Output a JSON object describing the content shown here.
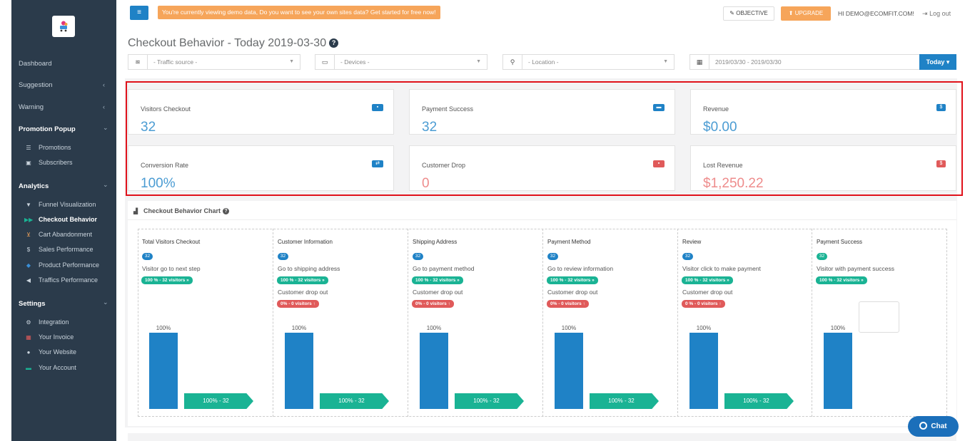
{
  "sidebar": {
    "nav": [
      {
        "label": "Dashboard",
        "chevron": ""
      },
      {
        "label": "Suggestion",
        "chevron": "‹"
      },
      {
        "label": "Warning",
        "chevron": "‹"
      },
      {
        "label": "Promotion Popup",
        "chevron": "⌄"
      },
      {
        "label": "Analytics",
        "chevron": "⌄"
      },
      {
        "label": "Settings",
        "chevron": "⌄"
      }
    ],
    "promotion_sub": [
      {
        "label": "Promotions",
        "icon": "list-icon"
      },
      {
        "label": "Subscribers",
        "icon": "user-card-icon"
      }
    ],
    "analytics_sub": [
      {
        "label": "Funnel Visualization",
        "icon": "filter-icon"
      },
      {
        "label": "Checkout Behavior",
        "icon": "double-chevron-icon"
      },
      {
        "label": "Cart Abandonment",
        "icon": "cart-icon"
      },
      {
        "label": "Sales Performance",
        "icon": "dollar-icon"
      },
      {
        "label": "Product Performance",
        "icon": "cube-icon"
      },
      {
        "label": "Traffics Performance",
        "icon": "bullhorn-icon"
      }
    ],
    "settings_sub": [
      {
        "label": "Integration",
        "icon": "cogs-icon"
      },
      {
        "label": "Your Invoice",
        "icon": "calculator-icon"
      },
      {
        "label": "Your Website",
        "icon": "globe-icon"
      },
      {
        "label": "Your Account",
        "icon": "id-card-icon"
      }
    ]
  },
  "topbar": {
    "demo_banner": "You're currently viewing demo data, Do you want to see your own sites data? Get started for free now!",
    "objective": "OBJECTIVE",
    "upgrade": "UPGRADE",
    "user": "HI DEMO@ECOMFIT.COM!",
    "logout": "Log out"
  },
  "header": {
    "title": "Checkout Behavior - Today 2019-03-30",
    "filters": {
      "traffic_source": "- Traffic source -",
      "devices": "- Devices -",
      "location": "- Location -",
      "date_range": "2019/03/30 - 2019/03/30"
    },
    "today_button": "Today ▾"
  },
  "kpis": [
    {
      "label": "Visitors Checkout",
      "value": "32",
      "tone": "blue"
    },
    {
      "label": "Payment Success",
      "value": "32",
      "tone": "blue"
    },
    {
      "label": "Revenue",
      "value": "$0.00",
      "tone": "blue"
    },
    {
      "label": "Conversion Rate",
      "value": "100%",
      "tone": "blue"
    },
    {
      "label": "Customer Drop",
      "value": "0",
      "tone": "red"
    },
    {
      "label": "Lost Revenue",
      "value": "$1,250.22",
      "tone": "red"
    }
  ],
  "chart": {
    "title": "Checkout Behavior Chart"
  },
  "chart_data": {
    "type": "bar",
    "categories": [
      "Total Visitors Checkout",
      "Customer Information",
      "Shipping Address",
      "Payment Method",
      "Review",
      "Payment Success"
    ],
    "values": [
      100,
      100,
      100,
      100,
      100,
      100
    ],
    "unit": "%",
    "ylim": [
      0,
      100
    ]
  },
  "steps": [
    {
      "title": "Total Visitors Checkout",
      "count": "32",
      "next_text": "Visitor go to next step",
      "next_tag": "100 % - 32 visitors »",
      "drop_text": "",
      "drop_tag": "",
      "bar_label": "100%",
      "arrow": "100% - 32"
    },
    {
      "title": "Customer Information",
      "count": "32",
      "next_text": "Go to shipping address",
      "next_tag": "100 % - 32 visitors »",
      "drop_text": "Customer drop out",
      "drop_tag": "0% - 0 visitors ↑",
      "bar_label": "100%",
      "arrow": "100% - 32"
    },
    {
      "title": "Shipping Address",
      "count": "32",
      "next_text": "Go to payment method",
      "next_tag": "100 % - 32 visitors »",
      "drop_text": "Customer drop out",
      "drop_tag": "0% - 0 visitors ↑",
      "bar_label": "100%",
      "arrow": "100% - 32"
    },
    {
      "title": "Payment Method",
      "count": "32",
      "next_text": "Go to review information",
      "next_tag": "100 % - 32 visitors »",
      "drop_text": "Customer drop out",
      "drop_tag": "0% - 0 visitors ↑",
      "bar_label": "100%",
      "arrow": "100% - 32"
    },
    {
      "title": "Review",
      "count": "32",
      "next_text": "Visitor click to make payment",
      "next_tag": "100 % - 32 visitors »",
      "drop_text": "Customer drop out",
      "drop_tag": "0 % - 0 visitors ↑",
      "bar_label": "100%",
      "arrow": "100% - 32"
    },
    {
      "title": "Payment Success",
      "count": "32",
      "next_text": "Visitor with payment success",
      "next_tag": "100 % - 32 visitors »",
      "drop_text": "",
      "drop_tag": "",
      "bar_label": "100%",
      "arrow": ""
    }
  ],
  "chat": {
    "label": "Chat"
  }
}
